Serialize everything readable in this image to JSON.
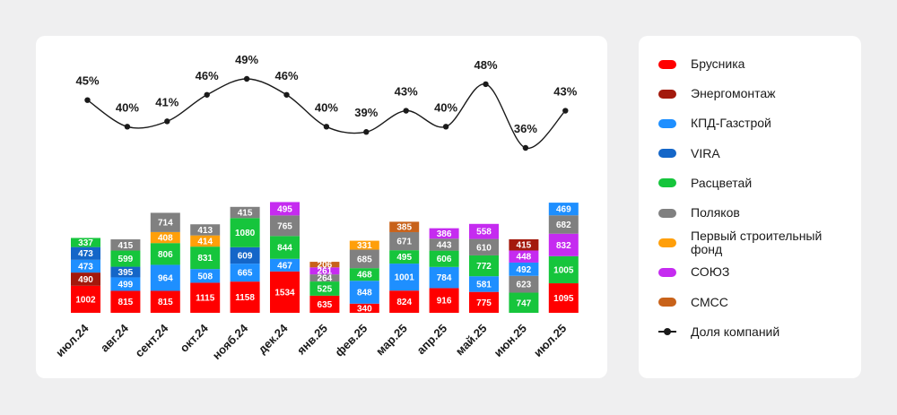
{
  "chart_data": {
    "type": "bar",
    "subtype": "stacked-bar-with-line",
    "categories": [
      "июл.24",
      "авг.24",
      "сент.24",
      "окт.24",
      "нояб.24",
      "дек.24",
      "янв.25",
      "фев.25",
      "мар.25",
      "апр.25",
      "май.25",
      "июн.25",
      "июл.25"
    ],
    "series": [
      {
        "name": "Брусника",
        "color": "#ff0000",
        "values": [
          1002,
          815,
          815,
          1115,
          1158,
          1534,
          635,
          340,
          824,
          916,
          775,
          null,
          1095
        ]
      },
      {
        "name": "Энергомонтаж",
        "color": "#a3190c",
        "values": [
          490,
          null,
          null,
          null,
          null,
          null,
          null,
          null,
          null,
          null,
          null,
          415,
          null
        ]
      },
      {
        "name": "КПД-Газстрой",
        "color": "#1e8fff",
        "values": [
          473,
          499,
          964,
          508,
          665,
          467,
          null,
          848,
          1001,
          784,
          581,
          492,
          469
        ]
      },
      {
        "name": "VIRA",
        "color": "#1466c8",
        "values": [
          473,
          395,
          null,
          null,
          609,
          null,
          null,
          null,
          null,
          null,
          null,
          null,
          null
        ]
      },
      {
        "name": "Расцветай",
        "color": "#16c53c",
        "values": [
          337,
          599,
          806,
          831,
          1080,
          844,
          525,
          468,
          495,
          606,
          772,
          747,
          1005
        ]
      },
      {
        "name": "Поляков",
        "color": "#808080",
        "values": [
          null,
          415,
          714,
          413,
          415,
          765,
          264,
          685,
          671,
          443,
          610,
          623,
          682
        ]
      },
      {
        "name": "Первый строительный фонд",
        "color": "#ff9f0a",
        "values": [
          null,
          null,
          408,
          414,
          null,
          null,
          null,
          331,
          null,
          null,
          null,
          null,
          null
        ]
      },
      {
        "name": "СОЮЗ",
        "color": "#c52bf0",
        "values": [
          null,
          null,
          null,
          null,
          null,
          495,
          261,
          null,
          null,
          386,
          558,
          448,
          832
        ]
      },
      {
        "name": "СМСС",
        "color": "#c8621a",
        "values": [
          null,
          null,
          null,
          null,
          null,
          null,
          206,
          null,
          385,
          null,
          null,
          null,
          null
        ]
      }
    ],
    "stacks": [
      [
        "Брусника",
        "Энергомонтаж",
        "КПД-Газстрой",
        "VIRA",
        "Расцветай"
      ],
      [
        "Брусника",
        "КПД-Газстрой",
        "VIRA",
        "Расцветай",
        "Поляков"
      ],
      [
        "Брусника",
        "КПД-Газстрой",
        "Расцветай",
        "Первый строительный фонд",
        "Поляков"
      ],
      [
        "Брусника",
        "КПД-Газстрой",
        "Расцветай",
        "Первый строительный фонд",
        "Поляков"
      ],
      [
        "Брусника",
        "КПД-Газстрой",
        "VIRA",
        "Расцветай",
        "Поляков"
      ],
      [
        "Брусника",
        "КПД-Газстрой",
        "Расцветай",
        "Поляков",
        "СОЮЗ"
      ],
      [
        "Брусника",
        "Расцветай",
        "Поляков",
        "СОЮЗ",
        "СМСС"
      ],
      [
        "Брусника",
        "КПД-Газстрой",
        "Расцветай",
        "Поляков",
        "Первый строительный фонд"
      ],
      [
        "Брусника",
        "КПД-Газстрой",
        "Расцветай",
        "Поляков",
        "СМСС"
      ],
      [
        "Брусника",
        "КПД-Газстрой",
        "Расцветай",
        "Поляков",
        "СОЮЗ"
      ],
      [
        "Брусника",
        "КПД-Газстрой",
        "Расцветай",
        "Поляков",
        "СОЮЗ"
      ],
      [
        "Расцветай",
        "Поляков",
        "КПД-Газстрой",
        "СОЮЗ",
        "Энергомонтаж"
      ],
      [
        "Брусника",
        "Расцветай",
        "СОЮЗ",
        "Поляков",
        "КПД-Газстрой"
      ]
    ],
    "line": {
      "name": "Доля компаний",
      "color": "#1a1a1a",
      "values": [
        45,
        40,
        41,
        46,
        49,
        46,
        40,
        39,
        43,
        40,
        48,
        36,
        43
      ],
      "labels": [
        "45%",
        "40%",
        "41%",
        "46%",
        "49%",
        "46%",
        "40%",
        "39%",
        "43%",
        "40%",
        "48%",
        "36%",
        "43%"
      ],
      "ylim": [
        36,
        49
      ]
    },
    "ylim": [
      0,
      5400
    ],
    "legend_position": "right",
    "grid": false
  },
  "legend": {
    "items": [
      {
        "label": "Брусника",
        "color": "#ff0000",
        "kind": "bar"
      },
      {
        "label": "Энергомонтаж",
        "color": "#a3190c",
        "kind": "bar"
      },
      {
        "label": "КПД-Газстрой",
        "color": "#1e8fff",
        "kind": "bar"
      },
      {
        "label": "VIRA",
        "color": "#1466c8",
        "kind": "bar"
      },
      {
        "label": "Расцветай",
        "color": "#16c53c",
        "kind": "bar"
      },
      {
        "label": "Поляков",
        "color": "#808080",
        "kind": "bar"
      },
      {
        "label": "Первый строительный фонд",
        "color": "#ff9f0a",
        "kind": "bar"
      },
      {
        "label": "СОЮЗ",
        "color": "#c52bf0",
        "kind": "bar"
      },
      {
        "label": "СМСС",
        "color": "#c8621a",
        "kind": "bar"
      },
      {
        "label": "Доля компаний",
        "color": "#1a1a1a",
        "kind": "line"
      }
    ]
  }
}
